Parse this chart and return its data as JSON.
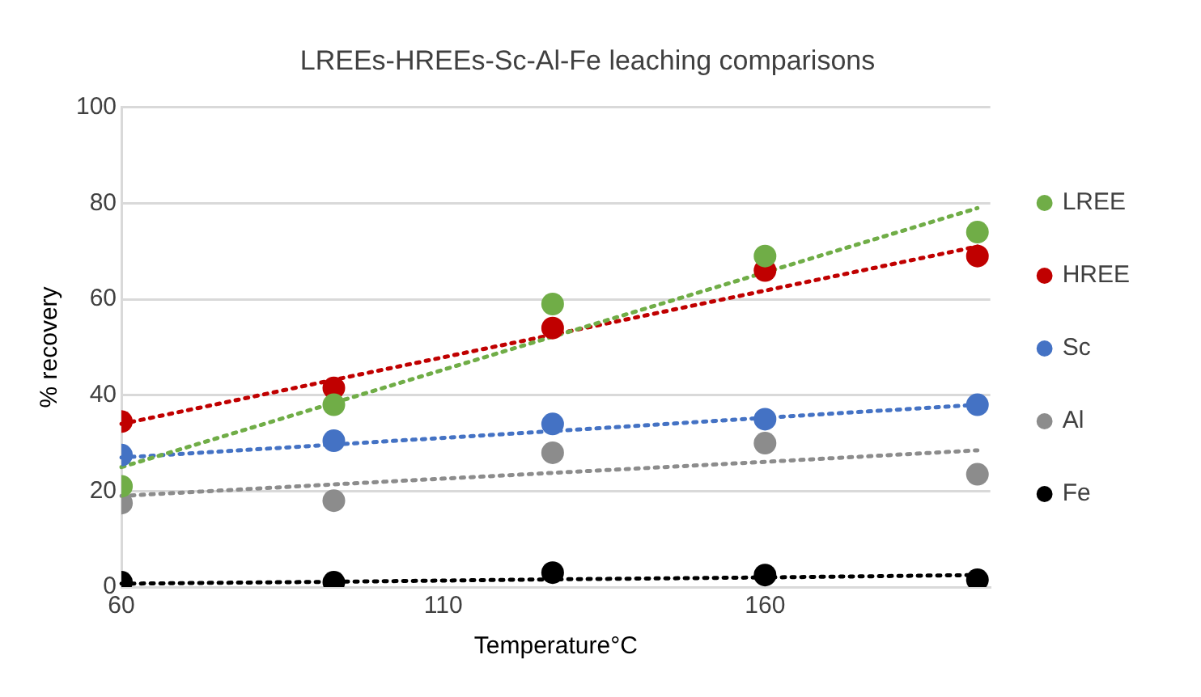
{
  "chart_data": {
    "type": "scatter",
    "title": "LREEs-HREEs-Sc-Al-Fe leaching comparisons",
    "xlabel": "Temperature°C",
    "ylabel": "% recovery",
    "x": [
      60,
      93,
      127,
      160,
      193
    ],
    "series": [
      {
        "name": "LREE",
        "color": "#70ad47",
        "values": [
          21,
          38,
          59,
          69,
          74
        ]
      },
      {
        "name": "HREE",
        "color": "#c00000",
        "values": [
          34.5,
          41.5,
          54,
          66,
          69
        ]
      },
      {
        "name": "Sc",
        "color": "#4472c4",
        "values": [
          27.5,
          30.5,
          34,
          35,
          38
        ]
      },
      {
        "name": "Al",
        "color": "#8c8c8c",
        "values": [
          17.5,
          18,
          28,
          30,
          23.5
        ]
      },
      {
        "name": "Fe",
        "color": "#000000",
        "values": [
          1,
          1,
          3,
          2.5,
          1.5
        ]
      },
      {
        "type": "line",
        "color": "#70ad47",
        "values": [
          25,
          38.4,
          52.2,
          65.6,
          79
        ],
        "line_style": "dotted",
        "marker": "none"
      },
      {
        "type": "line",
        "color": "#c00000",
        "values": [
          34,
          43.2,
          52.6,
          61.8,
          71
        ],
        "line_style": "dotted",
        "marker": "none"
      },
      {
        "type": "line",
        "color": "#4472c4",
        "values": [
          27,
          29.7,
          32.5,
          35.3,
          38
        ],
        "line_style": "dotted",
        "marker": "none"
      },
      {
        "type": "line",
        "color": "#8c8c8c",
        "values": [
          19,
          21.4,
          23.8,
          26.1,
          28.5
        ],
        "line_style": "dotted",
        "marker": "none"
      },
      {
        "type": "line",
        "color": "#000000",
        "values": [
          0.7,
          1.1,
          1.6,
          2,
          2.5
        ],
        "line_style": "dotted",
        "marker": "none"
      }
    ],
    "xlim": [
      60,
      195
    ],
    "xticks": [
      60,
      110,
      160
    ],
    "ylim": [
      0,
      100
    ],
    "yticks": [
      0,
      20,
      40,
      60,
      80,
      100
    ],
    "grid": "y",
    "legend": "right",
    "marker": "circle"
  }
}
